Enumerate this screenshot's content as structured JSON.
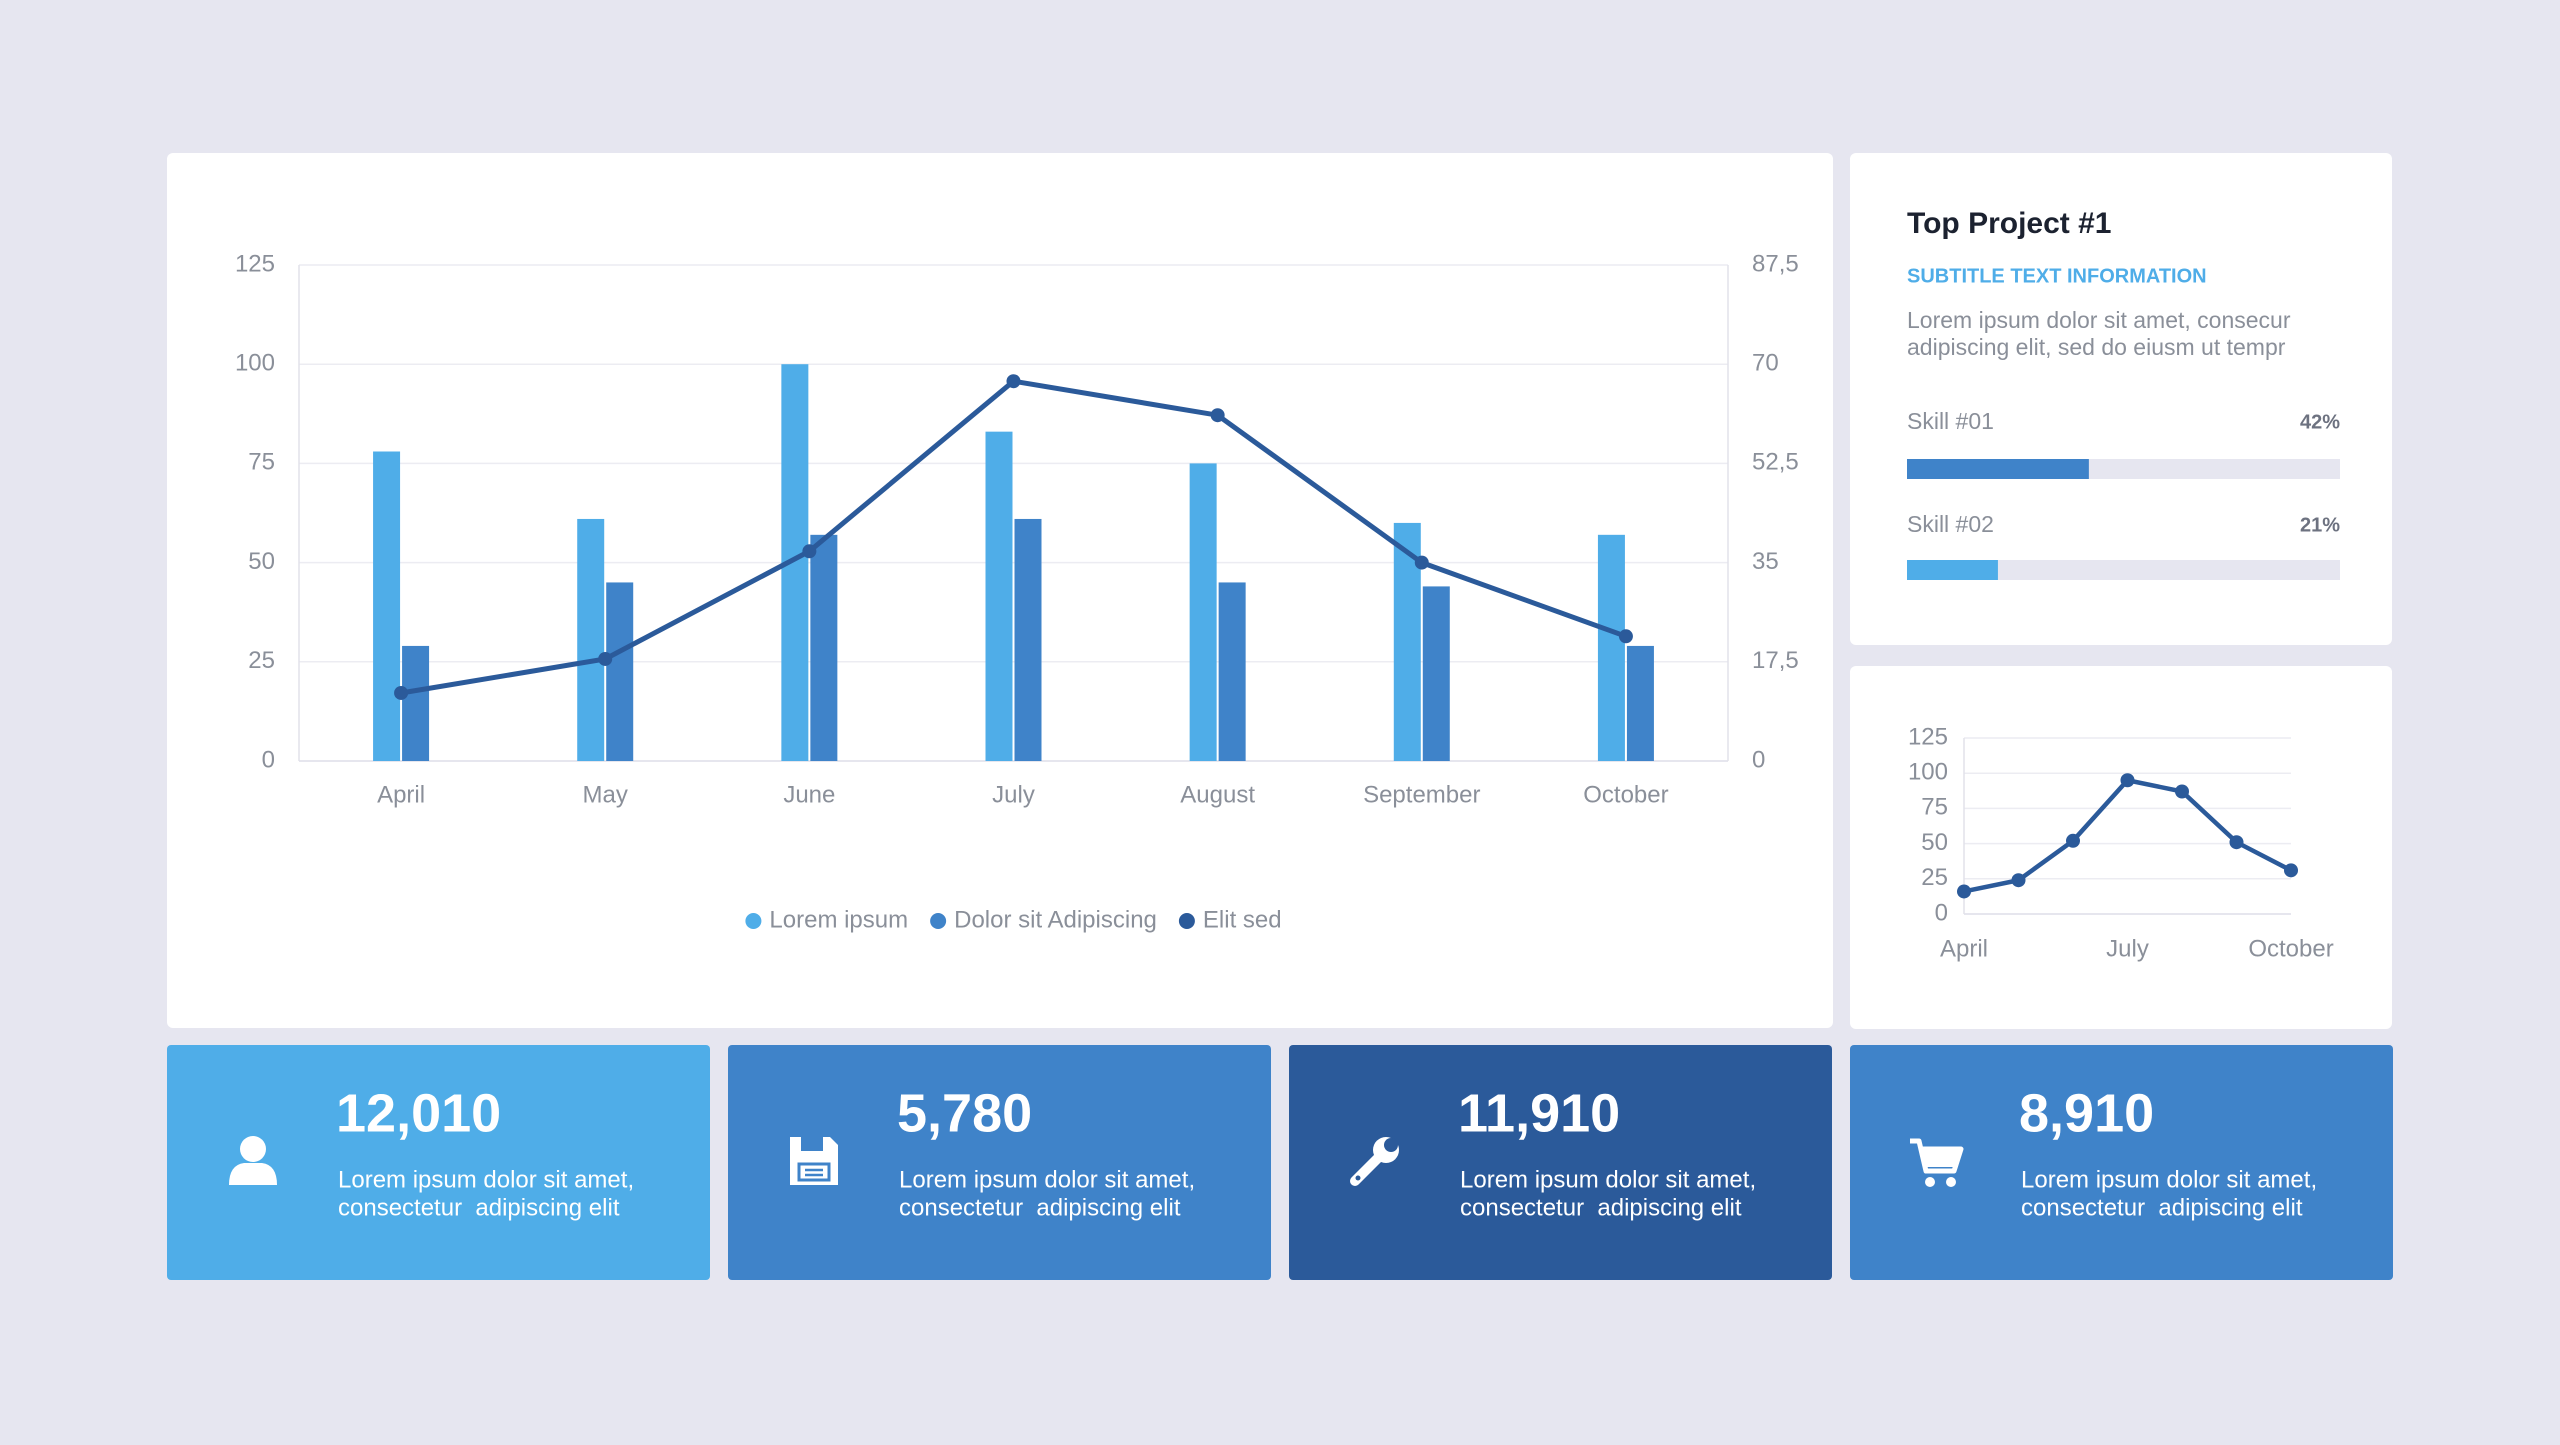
{
  "chart_data": [
    {
      "type": "bar",
      "categories": [
        "April",
        "May",
        "June",
        "July",
        "August",
        "September",
        "October"
      ],
      "series": [
        {
          "name": "Lorem ipsum",
          "type": "bar",
          "color": "#4FADE8",
          "values": [
            78,
            61,
            100,
            83,
            75,
            60,
            57
          ]
        },
        {
          "name": "Dolor sit Adipiscing",
          "type": "bar",
          "color": "#3F83C9",
          "values": [
            29,
            45,
            57,
            61,
            45,
            44,
            29
          ]
        },
        {
          "name": "Elit sed",
          "type": "line",
          "axis": "y2",
          "color": "#2B5A9A",
          "values": [
            12,
            18,
            37,
            67,
            61,
            35,
            22
          ]
        }
      ],
      "ylim": [
        0,
        125
      ],
      "yticks": [
        0,
        25,
        50,
        75,
        100,
        125
      ],
      "y2lim": [
        0,
        87.5
      ],
      "y2ticks": [
        0,
        {
          "value": 17.5,
          "label": "17,5"
        },
        35,
        {
          "value": 52.5,
          "label": "52,5"
        },
        70,
        {
          "value": 87.5,
          "label": "87,5"
        }
      ],
      "grid": true,
      "legend": "bottom"
    },
    {
      "type": "line",
      "categories": [
        "April",
        null,
        null,
        "July",
        null,
        null,
        "October"
      ],
      "series": [
        {
          "type": "line",
          "color": "#2B5A9A",
          "values": [
            16,
            24,
            52,
            95,
            87,
            51,
            31
          ]
        }
      ],
      "ylim": [
        0,
        125
      ],
      "yticks": [
        0,
        25,
        50,
        75,
        100,
        125
      ],
      "grid": true
    }
  ],
  "project": {
    "title": "Top Project #1",
    "subtitle": "SUBTITLE TEXT INFORMATION",
    "text": [
      "Lorem ipsum dolor sit amet, consecur",
      "adipiscing elit, sed do eiusm ut tempr"
    ],
    "skills": [
      {
        "name": "Skill #01",
        "value": 42,
        "value_label": "42%",
        "color": "#3F83C9"
      },
      {
        "name": "Skill #02",
        "value": 21,
        "value_label": "21%",
        "color": "#4FADE8"
      }
    ]
  },
  "stats": [
    {
      "value": "12,010",
      "lines": [
        "Lorem ipsum dolor sit amet,",
        "consectetur  adipiscing elit"
      ],
      "color": "#4FADE8"
    },
    {
      "value": "5,780",
      "lines": [
        "Lorem ipsum dolor sit amet,",
        "consectetur  adipiscing elit"
      ],
      "color": "#3F83C9"
    },
    {
      "value": "11,910",
      "lines": [
        "Lorem ipsum dolor sit amet,",
        "consectetur  adipiscing elit"
      ],
      "color": "#2B5A9A"
    },
    {
      "value": "8,910",
      "lines": [
        "Lorem ipsum dolor sit amet,",
        "consectetur  adipiscing elit"
      ],
      "color": "#3F83C9"
    }
  ]
}
